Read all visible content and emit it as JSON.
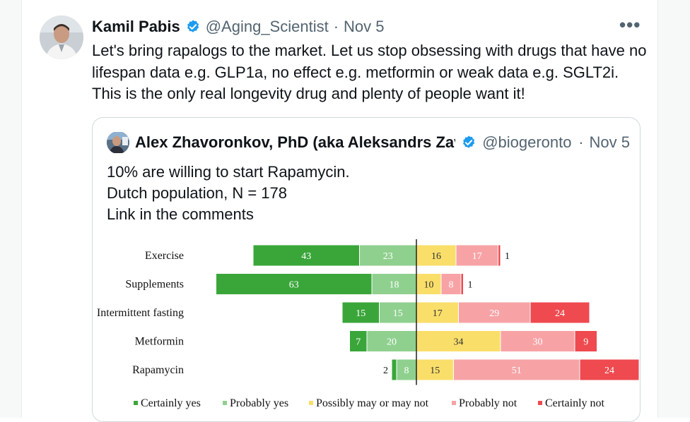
{
  "tweet": {
    "author_name": "Kamil Pabis",
    "handle": "@Aging_Scientist",
    "separator": "·",
    "date": "Nov 5",
    "more": "•••",
    "text": "Let's bring rapalogs to the market. Let us stop obsessing with drugs that have no lifespan data e.g. GLP1a, no effect e.g. metformin or weak data e.g. SGLT2i. This is the only real longevity drug and plenty of people want it!"
  },
  "quote": {
    "author_name": "Alex Zhavoronkov, PhD (aka Aleksandrs Zavoronkovs)",
    "handle": "@biogerontology",
    "separator": "·",
    "date": "Nov 5",
    "lines": [
      "10% are willing to start Rapamycin.",
      "Dutch population, N = 178",
      "Link in the comments"
    ]
  },
  "colors": {
    "certainly_yes": "#3aa63a",
    "probably_yes": "#8fd08f",
    "possibly": "#fade6a",
    "probably_not": "#f7a3a6",
    "certainly_not": "#ee4a4f",
    "verified": "#1d9bf0"
  },
  "chart_data": {
    "type": "bar",
    "subtype": "diverging-stacked",
    "categories": [
      "Exercise",
      "Supplements",
      "Intermittent fasting",
      "Metformin",
      "Rapamycin"
    ],
    "series": [
      {
        "name": "Certainly yes",
        "values": [
          43,
          63,
          15,
          7,
          2
        ]
      },
      {
        "name": "Probably yes",
        "values": [
          23,
          18,
          15,
          20,
          8
        ]
      },
      {
        "name": "Possibly may or may not",
        "values": [
          16,
          10,
          17,
          34,
          15
        ]
      },
      {
        "name": "Probably not",
        "values": [
          17,
          8,
          29,
          30,
          51
        ]
      },
      {
        "name": "Certainly not",
        "values": [
          1,
          1,
          24,
          9,
          24
        ]
      }
    ],
    "legend_position": "bottom",
    "grid": false
  }
}
